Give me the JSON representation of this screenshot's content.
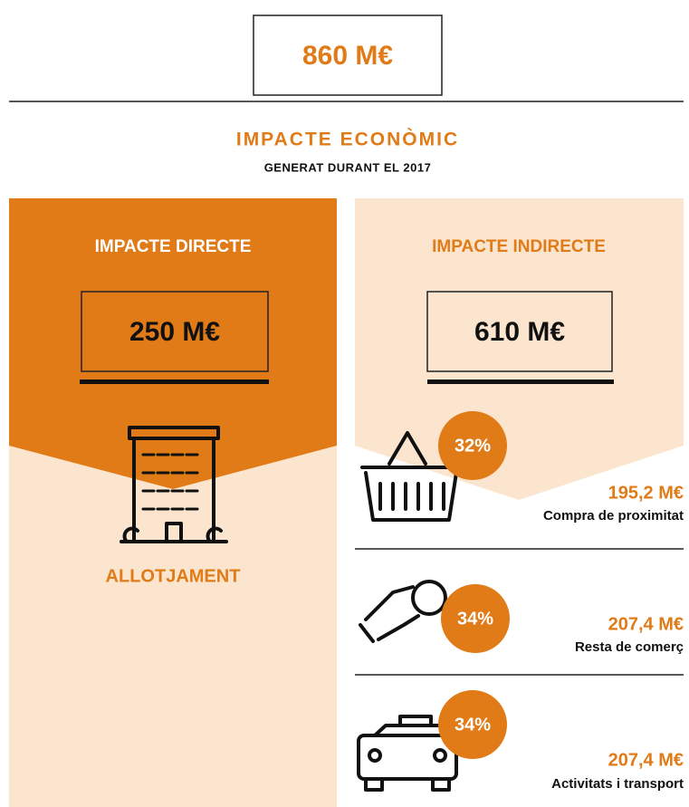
{
  "total": "860 M€",
  "title": "IMPACTE ECONÒMIC",
  "subtitle": "GENERAT DURANT EL 2017",
  "direct": {
    "title": "IMPACTE DIRECTE",
    "value": "250 M€",
    "label": "ALLOTJAMENT"
  },
  "indirect": {
    "title": "IMPACTE INDIRECTE",
    "value": "610 M€",
    "items": [
      {
        "percent": "32%",
        "amount": "195,2 M€",
        "label": "Compra de proximitat"
      },
      {
        "percent": "34%",
        "amount": "207,4 M€",
        "label": "Resta de comerç"
      },
      {
        "percent": "34%",
        "amount": "207,4 M€",
        "label": "Activitats i transport"
      }
    ]
  }
}
